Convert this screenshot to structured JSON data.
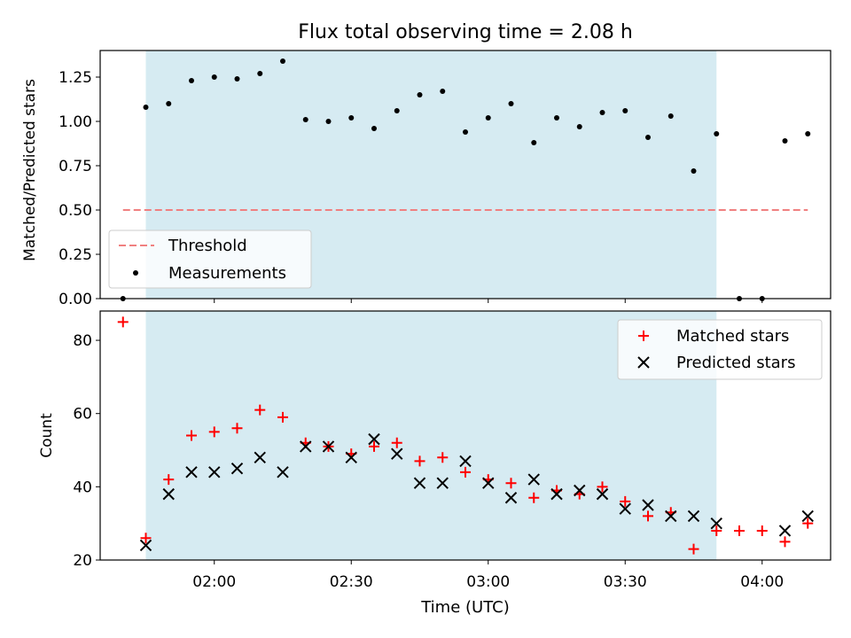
{
  "title": "Flux total observing time = 2.08 h",
  "colors": {
    "shade": "#add8e6",
    "threshold": "#f08080",
    "measurements": "#000000",
    "matched": "#ff0000",
    "predicted": "#000000"
  },
  "chart_data": [
    {
      "type": "scatter",
      "panel": "top",
      "ylabel": "Matched/Predicted stars",
      "ylim": [
        0,
        1.4
      ],
      "yticks": [
        "0.00",
        "0.25",
        "0.50",
        "0.75",
        "1.00",
        "1.25"
      ],
      "shaded_span": [
        "01:45",
        "03:50"
      ],
      "legend_position": "lower-left",
      "series": [
        {
          "name": "Threshold",
          "style": "dashed-line",
          "x": [
            "01:40",
            "04:10"
          ],
          "y": [
            0.5,
            0.5
          ]
        },
        {
          "name": "Measurements",
          "style": "dot",
          "x": [
            "01:40",
            "01:45",
            "01:50",
            "01:55",
            "02:00",
            "02:05",
            "02:10",
            "02:15",
            "02:20",
            "02:25",
            "02:30",
            "02:35",
            "02:40",
            "02:45",
            "02:50",
            "02:55",
            "03:00",
            "03:05",
            "03:10",
            "03:15",
            "03:20",
            "03:25",
            "03:30",
            "03:35",
            "03:40",
            "03:45",
            "03:50",
            "03:55",
            "04:00",
            "04:05",
            "04:10"
          ],
          "y": [
            0.0,
            1.08,
            1.1,
            1.23,
            1.25,
            1.24,
            1.27,
            1.34,
            1.01,
            1.0,
            1.02,
            0.96,
            1.06,
            1.15,
            1.17,
            0.94,
            1.02,
            1.1,
            0.88,
            1.02,
            0.97,
            1.05,
            1.06,
            0.91,
            1.03,
            0.72,
            0.93,
            0.0,
            0.0,
            0.89,
            0.93
          ]
        }
      ]
    },
    {
      "type": "scatter",
      "panel": "bottom",
      "xlabel": "Time (UTC)",
      "ylabel": "Count",
      "ylim": [
        20,
        88
      ],
      "yticks": [
        "20",
        "40",
        "60",
        "80"
      ],
      "xlim": [
        "01:35",
        "04:15"
      ],
      "xticks": [
        "02:00",
        "02:30",
        "03:00",
        "03:30",
        "04:00"
      ],
      "shaded_span": [
        "01:45",
        "03:50"
      ],
      "legend_position": "top-right",
      "series": [
        {
          "name": "Matched stars",
          "marker": "plus",
          "x": [
            "01:40",
            "01:45",
            "01:50",
            "01:55",
            "02:00",
            "02:05",
            "02:10",
            "02:15",
            "02:20",
            "02:25",
            "02:30",
            "02:35",
            "02:40",
            "02:45",
            "02:50",
            "02:55",
            "03:00",
            "03:05",
            "03:10",
            "03:15",
            "03:20",
            "03:25",
            "03:30",
            "03:35",
            "03:40",
            "03:45",
            "03:50",
            "03:55",
            "04:00",
            "04:05",
            "04:10"
          ],
          "y": [
            85,
            26,
            42,
            54,
            55,
            56,
            61,
            59,
            52,
            51,
            49,
            51,
            52,
            47,
            48,
            44,
            42,
            41,
            37,
            39,
            38,
            40,
            36,
            32,
            33,
            23,
            28,
            28,
            28,
            25,
            30
          ]
        },
        {
          "name": "Predicted stars",
          "marker": "x",
          "x": [
            "01:45",
            "01:50",
            "01:55",
            "02:00",
            "02:05",
            "02:10",
            "02:15",
            "02:20",
            "02:25",
            "02:30",
            "02:35",
            "02:40",
            "02:45",
            "02:50",
            "02:55",
            "03:00",
            "03:05",
            "03:10",
            "03:15",
            "03:20",
            "03:25",
            "03:30",
            "03:35",
            "03:40",
            "03:45",
            "03:50",
            "04:05",
            "04:10"
          ],
          "y": [
            24,
            38,
            44,
            44,
            45,
            48,
            44,
            51,
            51,
            48,
            53,
            49,
            41,
            41,
            47,
            41,
            37,
            42,
            38,
            39,
            38,
            34,
            35,
            32,
            32,
            30,
            28,
            32
          ]
        }
      ]
    }
  ]
}
